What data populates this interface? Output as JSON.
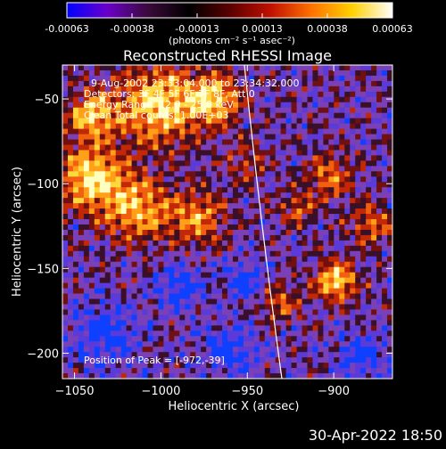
{
  "colorbar": {
    "ticks": [
      "-0.00063",
      "-0.00038",
      "-0.00013",
      "0.00013",
      "0.00038",
      "0.00063"
    ],
    "unit_label": "(photons cm⁻² s⁻¹ asec⁻²)",
    "colors": [
      "#0000ff",
      "#6a00c8",
      "#3a0a3a",
      "#000000",
      "#5a0000",
      "#c01000",
      "#ff7000",
      "#ffd000",
      "#ffffff"
    ]
  },
  "chart_data": {
    "type": "heatmap",
    "title": "Reconstructed RHESSI Image",
    "xlabel": "Heliocentric X (arcsec)",
    "ylabel": "Heliocentric Y (arcsec)",
    "xlim": [
      -1057,
      -866
    ],
    "ylim": [
      -215,
      -30
    ],
    "xticks": [
      -1050,
      -1000,
      -950,
      -900
    ],
    "yticks": [
      -50,
      -100,
      -150,
      -200
    ],
    "annotations": [
      "9-Aug-2002 23:33:04.000 to 23:34:32.000",
      "Detectors: 3F 4F 5F 6F 7F 8F, Att 0",
      "Energy Range: 12.0 - 25.0 keV",
      "Clean    Total counts: 1.00E+03"
    ],
    "peak_label": "Position of Peak = [-972,-39]",
    "limb_visible": true
  },
  "footer": {
    "date": "30-Apr-2022 18:50"
  }
}
